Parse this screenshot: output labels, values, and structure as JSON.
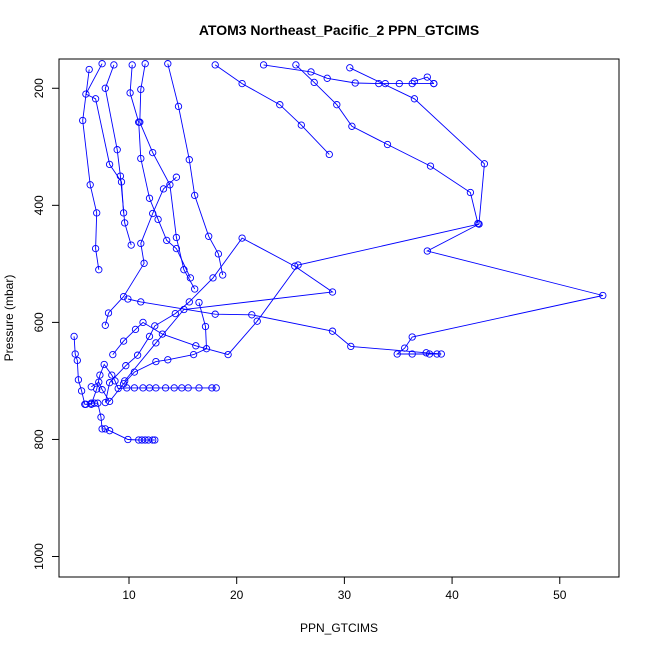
{
  "chart_data": {
    "type": "line",
    "title": "ATOM3 Northeast_Pacific_2 PPN_GTCIMS",
    "xlabel": "PPN_GTCIMS",
    "ylabel": "Pressure (mbar)",
    "xlim": [
      3.5,
      55.5
    ],
    "ylim": [
      1035,
      150
    ],
    "y_reversed": true,
    "xticks": [
      10,
      20,
      30,
      40,
      50
    ],
    "yticks": [
      200,
      400,
      600,
      800,
      1000
    ],
    "color": "#0000ff",
    "marker": "open-circle",
    "grid": false,
    "series": [
      {
        "points": [
          [
            6.3,
            168
          ],
          [
            5.7,
            255
          ],
          [
            6.4,
            365
          ],
          [
            7.0,
            413
          ],
          [
            6.9,
            474
          ],
          [
            7.2,
            510
          ]
        ]
      },
      {
        "points": [
          [
            7.5,
            158
          ],
          [
            6.0,
            210
          ],
          [
            6.9,
            218
          ],
          [
            8.2,
            330
          ],
          [
            9.3,
            360
          ],
          [
            9.5,
            413
          ]
        ]
      },
      {
        "points": [
          [
            8.6,
            160
          ],
          [
            7.8,
            200
          ],
          [
            8.9,
            305
          ],
          [
            9.2,
            350
          ],
          [
            9.6,
            430
          ],
          [
            10.2,
            468
          ]
        ]
      },
      {
        "points": [
          [
            10.3,
            160
          ],
          [
            10.1,
            208
          ],
          [
            10.9,
            258
          ],
          [
            11.1,
            320
          ],
          [
            11.9,
            388
          ],
          [
            12.7,
            424
          ],
          [
            13.5,
            460
          ],
          [
            14.4,
            474
          ],
          [
            15.7,
            524
          ]
        ]
      },
      {
        "points": [
          [
            11.5,
            158
          ],
          [
            11.1,
            202
          ],
          [
            11.0,
            258
          ],
          [
            12.2,
            310
          ],
          [
            13.8,
            365
          ],
          [
            14.4,
            455
          ],
          [
            15.1,
            510
          ],
          [
            16.1,
            543
          ]
        ]
      },
      {
        "points": [
          [
            13.6,
            158
          ],
          [
            14.6,
            231
          ],
          [
            15.6,
            322
          ],
          [
            16.1,
            383
          ],
          [
            17.4,
            453
          ],
          [
            18.3,
            483
          ],
          [
            18.7,
            519
          ]
        ]
      },
      {
        "points": [
          [
            18.0,
            160
          ],
          [
            20.5,
            192
          ],
          [
            24.0,
            228
          ],
          [
            26.0,
            263
          ],
          [
            28.6,
            313
          ]
        ]
      },
      {
        "points": [
          [
            22.5,
            160
          ],
          [
            26.9,
            172
          ],
          [
            28.4,
            183
          ],
          [
            31.0,
            191
          ],
          [
            33.2,
            192
          ],
          [
            33.8,
            192
          ],
          [
            35.1,
            192
          ],
          [
            36.3,
            192
          ],
          [
            38.3,
            192
          ]
        ]
      },
      {
        "points": [
          [
            25.5,
            160
          ],
          [
            27.2,
            190
          ],
          [
            29.3,
            228
          ],
          [
            30.7,
            265
          ],
          [
            34.0,
            296
          ],
          [
            38.0,
            333
          ],
          [
            41.7,
            378
          ],
          [
            42.4,
            431
          ]
        ]
      },
      {
        "points": [
          [
            36.5,
            188
          ],
          [
            37.7,
            181
          ],
          [
            38.3,
            192
          ]
        ]
      },
      {
        "points": [
          [
            30.5,
            165
          ],
          [
            36.5,
            218
          ],
          [
            43.0,
            329
          ],
          [
            42.5,
            432
          ],
          [
            37.7,
            478
          ],
          [
            54.0,
            554
          ],
          [
            36.3,
            625
          ],
          [
            35.6,
            644
          ],
          [
            34.9,
            654
          ],
          [
            36.3,
            654
          ],
          [
            37.9,
            654
          ],
          [
            38.6,
            654
          ],
          [
            39.0,
            654
          ],
          [
            37.6,
            652
          ],
          [
            30.6,
            641
          ],
          [
            28.9,
            615
          ],
          [
            21.4,
            587
          ],
          [
            18.0,
            586
          ],
          [
            11.1,
            565
          ],
          [
            9.9,
            560
          ]
        ]
      },
      {
        "points": [
          [
            7.8,
            605
          ],
          [
            8.1,
            584
          ],
          [
            9.5,
            556
          ],
          [
            11.4,
            499
          ],
          [
            11.1,
            465
          ],
          [
            12.2,
            414
          ],
          [
            13.2,
            372
          ],
          [
            14.4,
            352
          ]
        ]
      },
      {
        "points": [
          [
            4.9,
            624
          ],
          [
            5.0,
            654
          ],
          [
            5.2,
            665
          ],
          [
            5.3,
            698
          ],
          [
            5.6,
            717
          ],
          [
            5.9,
            740
          ],
          [
            6.5,
            740
          ],
          [
            7.0,
            714
          ],
          [
            7.3,
            690
          ],
          [
            7.7,
            672
          ],
          [
            8.4,
            690
          ],
          [
            8.7,
            700
          ],
          [
            9.0,
            713
          ],
          [
            9.8,
            712
          ],
          [
            10.5,
            712
          ],
          [
            11.3,
            712
          ],
          [
            11.9,
            712
          ],
          [
            12.5,
            712
          ],
          [
            13.4,
            712
          ],
          [
            14.2,
            712
          ],
          [
            14.9,
            712
          ],
          [
            15.5,
            712
          ],
          [
            16.5,
            712
          ],
          [
            17.7,
            712
          ],
          [
            18.1,
            712
          ]
        ]
      },
      {
        "points": [
          [
            6.0,
            740
          ],
          [
            6.5,
            738
          ],
          [
            6.8,
            738
          ],
          [
            7.1,
            738
          ],
          [
            7.4,
            762
          ],
          [
            7.5,
            782
          ],
          [
            7.8,
            782
          ],
          [
            8.2,
            785
          ],
          [
            9.9,
            800
          ],
          [
            10.9,
            801
          ],
          [
            11.2,
            801
          ],
          [
            11.5,
            801
          ],
          [
            11.8,
            801
          ],
          [
            12.2,
            801
          ],
          [
            12.4,
            801
          ]
        ]
      },
      {
        "points": [
          [
            7.8,
            737
          ],
          [
            8.2,
            703
          ],
          [
            9.7,
            674
          ],
          [
            10.8,
            656
          ],
          [
            11.9,
            624
          ],
          [
            12.4,
            606
          ],
          [
            14.3,
            585
          ],
          [
            15.6,
            565
          ],
          [
            17.8,
            524
          ],
          [
            20.5,
            456
          ],
          [
            25.4,
            504
          ],
          [
            28.9,
            548
          ],
          [
            15.1,
            578
          ],
          [
            12.5,
            635
          ],
          [
            9.6,
            700
          ]
        ]
      },
      {
        "points": [
          [
            8.5,
            655
          ],
          [
            9.5,
            632
          ],
          [
            10.6,
            612
          ],
          [
            11.3,
            600
          ],
          [
            13.1,
            620
          ],
          [
            16.2,
            640
          ],
          [
            19.2,
            655
          ],
          [
            21.9,
            598
          ],
          [
            25.7,
            502
          ],
          [
            42.5,
            432
          ]
        ]
      },
      {
        "points": [
          [
            6.5,
            710
          ],
          [
            7.2,
            702
          ],
          [
            7.5,
            715
          ],
          [
            8.2,
            735
          ],
          [
            9.5,
            705
          ],
          [
            10.5,
            685
          ],
          [
            12.5,
            667
          ],
          [
            13.6,
            664
          ],
          [
            16.0,
            655
          ],
          [
            17.2,
            645
          ],
          [
            17.1,
            607
          ],
          [
            16.5,
            566
          ]
        ]
      }
    ]
  }
}
